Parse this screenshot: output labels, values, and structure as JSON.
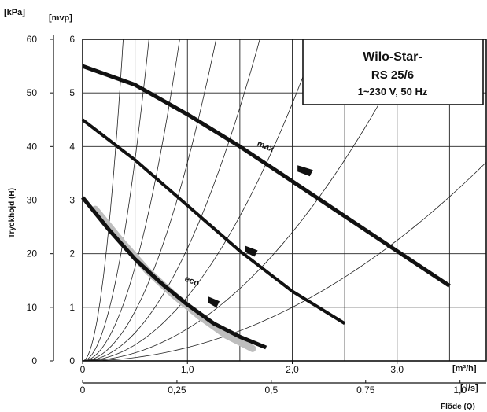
{
  "chart_data": {
    "type": "line",
    "title_lines": [
      "Wilo-Star-",
      "RS 25/6",
      "1~230 V, 50 Hz"
    ],
    "ylabel": "Tryckhöjd (H)",
    "xlabel": "Flöde (Q)",
    "y_left_unit": "[kPa]",
    "y_right_unit": "[mvp]",
    "x_top_unit": "[m³/h]",
    "x_bottom_unit": "[ l/s]",
    "y_kpa_ticks": [
      "0",
      "10",
      "20",
      "30",
      "40",
      "50",
      "60"
    ],
    "y_mvp_ticks": [
      "0",
      "1",
      "2",
      "3",
      "4",
      "5",
      "6"
    ],
    "x_m3h_ticks": [
      "0",
      "1,0",
      "2,0",
      "3,0"
    ],
    "x_ls_ticks": [
      "0",
      "0,25",
      "0,5",
      "0,75",
      "1,0"
    ],
    "xlim_m3h": [
      0,
      3.85
    ],
    "ylim_mvp": [
      0,
      6
    ],
    "grid": true,
    "curve_labels": [
      "max",
      "eco"
    ],
    "series": [
      {
        "name": "max",
        "x": [
          0.0,
          0.5,
          1.0,
          1.5,
          2.0,
          2.5,
          3.0,
          3.5
        ],
        "y": [
          5.5,
          5.15,
          4.6,
          4.0,
          3.35,
          2.7,
          2.05,
          1.4
        ]
      },
      {
        "name": "",
        "x": [
          0.0,
          0.5,
          1.0,
          1.5,
          2.0,
          2.5
        ],
        "y": [
          4.5,
          3.75,
          2.9,
          2.05,
          1.3,
          0.7
        ]
      },
      {
        "name": "eco",
        "x": [
          0.0,
          0.25,
          0.5,
          0.75,
          1.0,
          1.25,
          1.5,
          1.75
        ],
        "y": [
          3.05,
          2.45,
          1.9,
          1.45,
          1.05,
          0.7,
          0.45,
          0.25
        ]
      }
    ]
  }
}
